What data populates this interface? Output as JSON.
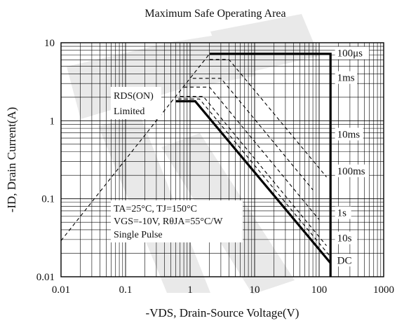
{
  "chart_data": {
    "type": "line",
    "title": "Maximum Safe Operating Area",
    "xlabel": "-VDS, Drain-Source Voltage(V)",
    "ylabel": "-ID, Drain Current(A)",
    "x_scale": "log",
    "y_scale": "log",
    "xlim": [
      0.01,
      1000
    ],
    "ylim": [
      0.01,
      10
    ],
    "grid": true,
    "x_ticks": [
      {
        "value": 0.01,
        "label": "0.01"
      },
      {
        "value": 0.1,
        "label": "0.1"
      },
      {
        "value": 1,
        "label": "1"
      },
      {
        "value": 10,
        "label": "10"
      },
      {
        "value": 100,
        "label": "100"
      },
      {
        "value": 1000,
        "label": "1000"
      }
    ],
    "y_ticks": [
      {
        "value": 0.01,
        "label": "0.01"
      },
      {
        "value": 0.1,
        "label": "0.1"
      },
      {
        "value": 1,
        "label": "1"
      },
      {
        "value": 10,
        "label": "10"
      }
    ],
    "series": [
      {
        "name": "100μs",
        "style": "solid",
        "points": [
          [
            2.0,
            7.2
          ],
          [
            150,
            7.2
          ],
          [
            150,
            0.01
          ]
        ]
      },
      {
        "name": "1ms",
        "style": "dashed",
        "points": [
          [
            2.0,
            6.1
          ],
          [
            4.0,
            6.1
          ],
          [
            130,
            0.19
          ]
        ]
      },
      {
        "name": "10ms",
        "style": "dashed",
        "points": [
          [
            1.1,
            3.5
          ],
          [
            3.0,
            3.5
          ],
          [
            80,
            0.13
          ]
        ]
      },
      {
        "name": "100ms",
        "style": "dashed",
        "points": [
          [
            0.8,
            2.7
          ],
          [
            2.0,
            2.7
          ],
          [
            100,
            0.054
          ]
        ]
      },
      {
        "name": "1s",
        "style": "dashed",
        "points": [
          [
            0.7,
            2.05
          ],
          [
            1.6,
            2.05
          ],
          [
            130,
            0.025
          ]
        ]
      },
      {
        "name": "10s",
        "style": "dashed",
        "points": [
          [
            0.65,
            1.9
          ],
          [
            1.4,
            1.9
          ],
          [
            150,
            0.018
          ]
        ]
      },
      {
        "name": "DC",
        "style": "solid",
        "points": [
          [
            0.6,
            1.78
          ],
          [
            1.2,
            1.78
          ],
          [
            150,
            0.015
          ]
        ]
      },
      {
        "name": "RDS(ON) Limited",
        "style": "dashed",
        "points": [
          [
            0.01,
            0.029
          ],
          [
            2.0,
            7.2
          ]
        ]
      }
    ],
    "curve_labels": [
      {
        "text": "100μs",
        "x": 190,
        "y": 6.8
      },
      {
        "text": "1ms",
        "x": 190,
        "y": 3.3
      },
      {
        "text": "10ms",
        "x": 190,
        "y": 0.62
      },
      {
        "text": "100ms",
        "x": 190,
        "y": 0.21
      },
      {
        "text": "1s",
        "x": 190,
        "y": 0.061
      },
      {
        "text": "10s",
        "x": 190,
        "y": 0.029
      },
      {
        "text": "DC",
        "x": 190,
        "y": 0.015
      }
    ],
    "annotations": {
      "rds_line1": "RDS(ON)",
      "rds_line2": "Limited",
      "cond_line1": "TA=25°C, TJ=150°C",
      "cond_line2": "VGS=-10V, RθJA=55°C/W",
      "cond_line3": "Single Pulse"
    },
    "colors": {
      "axes": "#000000",
      "grid": "#000000",
      "text": "#111111",
      "watermark": "#e9e9e9"
    }
  }
}
